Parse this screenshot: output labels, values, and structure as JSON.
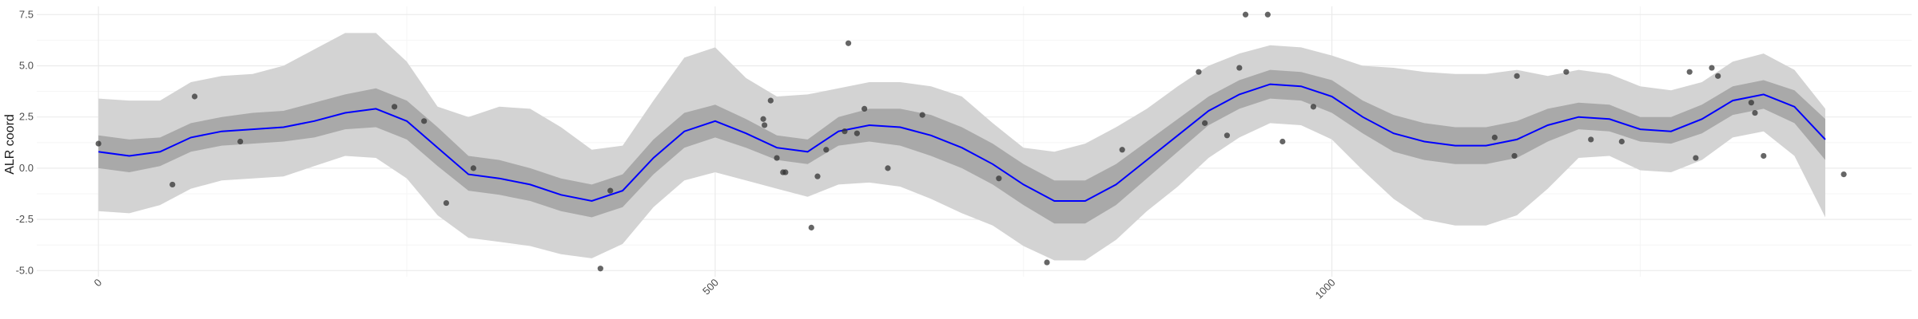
{
  "chart_data": {
    "type": "line",
    "title": "",
    "xlabel": "",
    "ylabel": "ALR coord",
    "xlim": [
      -50,
      1470
    ],
    "ylim": [
      -5.3,
      7.9
    ],
    "x_ticks": [
      0,
      500,
      1000
    ],
    "x_tick_labels": [
      "0",
      "500",
      "1000"
    ],
    "y_ticks": [
      -5,
      -2.5,
      0,
      2.5,
      5,
      7.5
    ],
    "y_tick_labels": [
      "-5.0",
      "-2.5",
      "0.0",
      "2.5",
      "5.0",
      "7.5"
    ],
    "grid": true,
    "legend": "none",
    "colors": {
      "mean_line": "#0000ff",
      "inner_band": "#a9a9a9",
      "outer_band": "#d3d3d3",
      "points": "#333333",
      "grid_major": "#ebebeb",
      "grid_minor": "#f5f5f5"
    },
    "series": [
      {
        "type": "line",
        "x": [
          0,
          25,
          50,
          75,
          100,
          125,
          150,
          175,
          200,
          225,
          250,
          275,
          300,
          325,
          350,
          375,
          400,
          425,
          450,
          475,
          500,
          525,
          550,
          575,
          600,
          625,
          650,
          675,
          700,
          725,
          750,
          775,
          800,
          825,
          850,
          875,
          900,
          925,
          950,
          975,
          1000,
          1025,
          1050,
          1075,
          1100,
          1125,
          1150,
          1175,
          1200,
          1225,
          1250,
          1275,
          1300,
          1325,
          1350,
          1375,
          1400
        ],
        "mean": [
          0.8,
          0.6,
          0.8,
          1.5,
          1.8,
          1.9,
          2.0,
          2.3,
          2.7,
          2.9,
          2.3,
          1.0,
          -0.3,
          -0.5,
          -0.8,
          -1.3,
          -1.6,
          -1.1,
          0.5,
          1.8,
          2.3,
          1.7,
          1.0,
          0.8,
          1.8,
          2.1,
          2.0,
          1.6,
          1.0,
          0.2,
          -0.8,
          -1.6,
          -1.6,
          -0.8,
          0.4,
          1.6,
          2.8,
          3.6,
          4.1,
          4.0,
          3.5,
          2.5,
          1.7,
          1.3,
          1.1,
          1.1,
          1.4,
          2.1,
          2.5,
          2.4,
          1.9,
          1.8,
          2.4,
          3.3,
          3.6,
          3.0,
          1.4
        ],
        "inner_lower": [
          0.0,
          -0.2,
          0.1,
          0.8,
          1.1,
          1.2,
          1.3,
          1.5,
          1.9,
          2.0,
          1.4,
          0.1,
          -1.1,
          -1.3,
          -1.6,
          -2.1,
          -2.4,
          -1.9,
          -0.3,
          1.0,
          1.5,
          1.0,
          0.4,
          0.2,
          1.1,
          1.3,
          1.1,
          0.6,
          0.0,
          -0.8,
          -1.8,
          -2.7,
          -2.7,
          -1.8,
          -0.5,
          0.8,
          2.1,
          2.9,
          3.4,
          3.3,
          2.7,
          1.7,
          0.8,
          0.4,
          0.2,
          0.2,
          0.5,
          1.3,
          1.9,
          1.8,
          1.3,
          1.2,
          1.7,
          2.6,
          2.9,
          2.2,
          0.4
        ],
        "inner_upper": [
          1.6,
          1.4,
          1.5,
          2.2,
          2.5,
          2.7,
          2.8,
          3.2,
          3.6,
          3.9,
          3.3,
          2.0,
          0.6,
          0.4,
          0.0,
          -0.5,
          -0.8,
          -0.3,
          1.4,
          2.7,
          3.1,
          2.4,
          1.6,
          1.4,
          2.5,
          2.9,
          2.9,
          2.6,
          2.0,
          1.2,
          0.2,
          -0.6,
          -0.6,
          0.2,
          1.3,
          2.4,
          3.5,
          4.3,
          4.8,
          4.7,
          4.3,
          3.3,
          2.6,
          2.2,
          2.0,
          2.0,
          2.3,
          2.9,
          3.2,
          3.1,
          2.5,
          2.5,
          3.1,
          4.0,
          4.3,
          3.8,
          2.4
        ],
        "outer_lower": [
          -2.1,
          -2.2,
          -1.8,
          -1.0,
          -0.6,
          -0.5,
          -0.4,
          0.1,
          0.6,
          0.5,
          -0.5,
          -2.3,
          -3.4,
          -3.6,
          -3.8,
          -4.2,
          -4.4,
          -3.7,
          -1.9,
          -0.6,
          -0.2,
          -0.6,
          -1.0,
          -1.4,
          -0.8,
          -0.7,
          -0.9,
          -1.5,
          -2.2,
          -2.8,
          -3.8,
          -4.5,
          -4.5,
          -3.5,
          -2.1,
          -0.9,
          0.5,
          1.5,
          2.2,
          2.1,
          1.4,
          -0.1,
          -1.5,
          -2.5,
          -2.8,
          -2.8,
          -2.3,
          -1.0,
          0.5,
          0.6,
          -0.1,
          -0.2,
          0.4,
          1.5,
          1.8,
          0.6,
          -2.4
        ],
        "outer_upper": [
          3.4,
          3.3,
          3.3,
          4.2,
          4.5,
          4.6,
          5.0,
          5.8,
          6.6,
          6.6,
          5.2,
          3.0,
          2.5,
          3.0,
          2.9,
          2.0,
          0.9,
          1.1,
          3.3,
          5.4,
          5.9,
          4.4,
          3.5,
          3.6,
          3.9,
          4.2,
          4.2,
          4.0,
          3.5,
          2.2,
          1.0,
          0.8,
          1.2,
          2.0,
          2.9,
          4.0,
          5.0,
          5.6,
          6.0,
          5.9,
          5.5,
          5.0,
          4.9,
          4.7,
          4.6,
          4.6,
          4.8,
          4.5,
          4.8,
          4.6,
          4.0,
          3.8,
          4.2,
          5.2,
          5.6,
          4.8,
          2.9
        ]
      },
      {
        "type": "scatter",
        "points": [
          [
            0,
            1.2
          ],
          [
            60,
            -0.8
          ],
          [
            78,
            3.5
          ],
          [
            115,
            1.3
          ],
          [
            240,
            3.0
          ],
          [
            264,
            2.3
          ],
          [
            282,
            -1.7
          ],
          [
            304,
            0.0
          ],
          [
            407,
            -4.9
          ],
          [
            415,
            -1.1
          ],
          [
            539,
            2.4
          ],
          [
            540,
            2.1
          ],
          [
            545,
            3.3
          ],
          [
            550,
            0.5
          ],
          [
            555,
            -0.2
          ],
          [
            557,
            -0.2
          ],
          [
            578,
            -2.9
          ],
          [
            583,
            -0.4
          ],
          [
            590,
            0.9
          ],
          [
            605,
            1.8
          ],
          [
            608,
            6.1
          ],
          [
            615,
            1.7
          ],
          [
            621,
            2.9
          ],
          [
            640,
            0.0
          ],
          [
            668,
            2.6
          ],
          [
            730,
            -0.5
          ],
          [
            769,
            -4.6
          ],
          [
            830,
            0.9
          ],
          [
            892,
            4.7
          ],
          [
            897,
            2.2
          ],
          [
            915,
            1.6
          ],
          [
            925,
            4.9
          ],
          [
            930,
            7.5
          ],
          [
            948,
            7.5
          ],
          [
            960,
            1.3
          ],
          [
            985,
            3.0
          ],
          [
            1132,
            1.5
          ],
          [
            1148,
            0.6
          ],
          [
            1150,
            4.5
          ],
          [
            1190,
            4.7
          ],
          [
            1210,
            1.4
          ],
          [
            1235,
            1.3
          ],
          [
            1290,
            4.7
          ],
          [
            1295,
            0.5
          ],
          [
            1308,
            4.9
          ],
          [
            1313,
            4.5
          ],
          [
            1340,
            3.2
          ],
          [
            1343,
            2.7
          ],
          [
            1350,
            0.6
          ],
          [
            1415,
            -0.3
          ]
        ]
      }
    ]
  }
}
